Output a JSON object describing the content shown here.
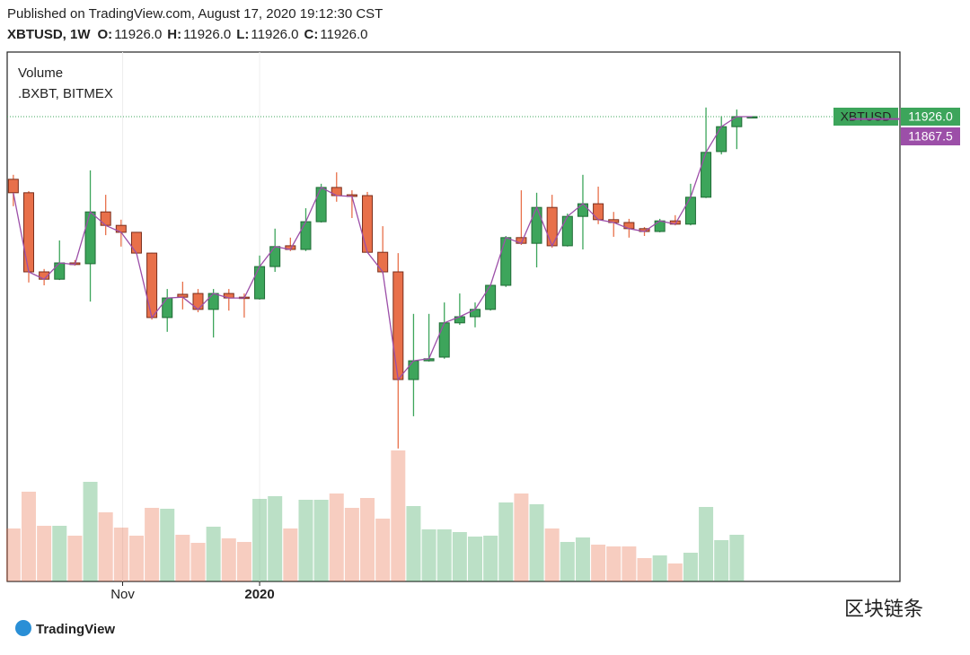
{
  "chart_data": {
    "type": "candlestick",
    "header": "Published on TradingView.com, August 17, 2020 19:12:30 CST",
    "symbol_line": "XBTUSD, 1W",
    "ohlc": [
      {
        "key": "O:",
        "value": 11926,
        "label": "11926.0"
      },
      {
        "key": "H:",
        "value": 11926,
        "label": "11926.0"
      },
      {
        "key": "L:",
        "value": 11926,
        "label": "11926.0"
      },
      {
        "key": "C:",
        "value": 11926,
        "label": "11926.0"
      }
    ],
    "legend": [
      "Volume",
      ".BXBT, BITMEX"
    ],
    "open": [
      10390,
      10060,
      8120,
      7940,
      8340,
      8320,
      9590,
      9260,
      9090,
      8580,
      7000,
      7570,
      7590,
      7200,
      7590,
      7500,
      7460,
      8250,
      8760,
      8670,
      9350,
      10190,
      10010,
      9990,
      8600,
      8120,
      5480,
      5940,
      6030,
      6870,
      7020,
      7200,
      7790,
      8960,
      8820,
      9700,
      8760,
      9480,
      9790,
      9400,
      9330,
      9180,
      9110,
      9370,
      9290,
      9950,
      11070,
      11680,
      11926
    ],
    "high": [
      10500,
      10100,
      8190,
      8890,
      8410,
      10610,
      10010,
      9400,
      9100,
      8590,
      7700,
      7880,
      7700,
      7700,
      7700,
      7590,
      8520,
      9180,
      8960,
      9680,
      10280,
      10560,
      10120,
      10080,
      9240,
      8580,
      7090,
      7090,
      7370,
      7590,
      7370,
      7810,
      9000,
      10120,
      10060,
      10010,
      9550,
      10500,
      10210,
      9590,
      9420,
      9220,
      9420,
      9510,
      10280,
      12150,
      11940,
      12100,
      11926
    ],
    "low": [
      9730,
      7860,
      7790,
      7920,
      8270,
      7390,
      9020,
      8740,
      8560,
      6950,
      6650,
      7200,
      7130,
      6510,
      7170,
      7000,
      7440,
      8120,
      8630,
      8630,
      9330,
      9840,
      9440,
      8590,
      8080,
      3790,
      4580,
      5920,
      5990,
      6820,
      6760,
      7170,
      7750,
      8780,
      8230,
      8710,
      8740,
      8670,
      9290,
      8980,
      8960,
      9000,
      9090,
      9260,
      9260,
      9930,
      11000,
      11130,
      11926
    ],
    "close": [
      10060,
      8120,
      7940,
      8340,
      8300,
      9590,
      9260,
      9090,
      8580,
      7000,
      7480,
      7500,
      7200,
      7590,
      7480,
      7480,
      8250,
      8740,
      8670,
      9350,
      10190,
      9990,
      9970,
      8600,
      8120,
      5480,
      5940,
      5990,
      6870,
      7020,
      7200,
      7790,
      8960,
      8820,
      9700,
      8760,
      9480,
      9790,
      9400,
      9330,
      9180,
      9110,
      9370,
      9290,
      9950,
      11050,
      11680,
      11926,
      11926
    ],
    "volume": [
      59,
      100,
      62,
      62,
      51,
      111,
      77,
      60,
      51,
      82,
      81,
      52,
      43,
      61,
      48,
      44,
      92,
      95,
      59,
      91,
      91,
      98,
      82,
      93,
      70,
      146,
      84,
      58,
      58,
      55,
      50,
      51,
      88,
      98,
      86,
      59,
      44,
      49,
      41,
      39,
      39,
      26,
      29,
      20,
      32,
      83,
      46,
      52,
      null
    ],
    "up_color": "#3da55b",
    "down_color": "#e8704a",
    "index_color": "#9c4fa8",
    "xlim": [
      -0.4,
      57.6
    ],
    "ylim": [
      530,
      13510
    ],
    "y2lim": [
      0,
      590
    ],
    "xticks": [
      {
        "value": 7.1,
        "label": "Nov"
      },
      {
        "value": 16,
        "label": "2020"
      }
    ],
    "last_price": {
      "symbol": "XBTUSD",
      "value": 11926,
      "label": "11926.0"
    },
    "index_price": {
      "value": 11867.5,
      "label": "11867.5"
    },
    "logo": "TradingView",
    "watermark": "区块链条"
  }
}
